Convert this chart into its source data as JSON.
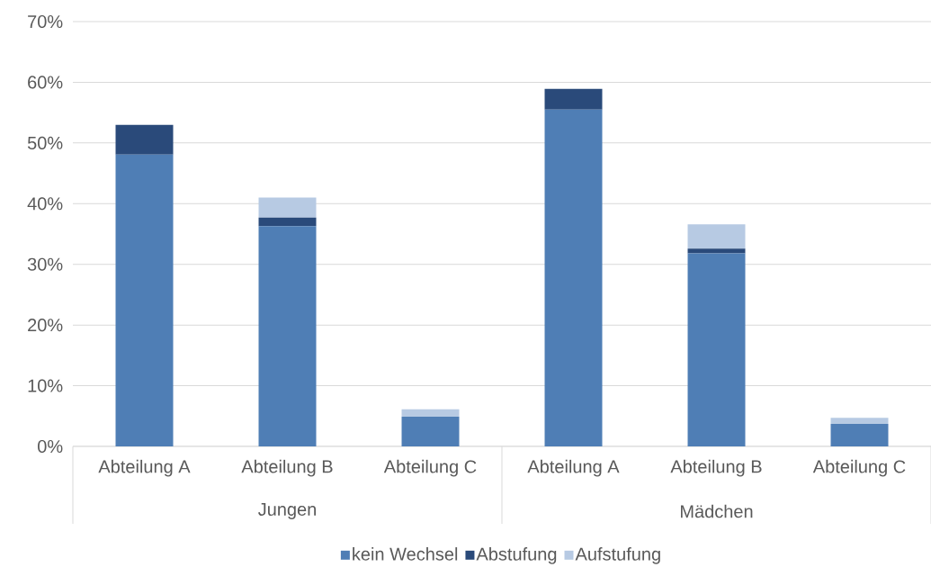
{
  "chart_data": {
    "type": "bar",
    "stacked": true,
    "categories": [
      "Abteilung A",
      "Abteilung B",
      "Abteilung C",
      "Abteilung A",
      "Abteilung B",
      "Abteilung C"
    ],
    "series": [
      {
        "name": "kein Wechsel",
        "color": "#4f7eb5",
        "values": [
          48.1,
          36.3,
          4.9,
          55.5,
          31.8,
          3.7
        ]
      },
      {
        "name": "Abstufung",
        "color": "#2a4a7a",
        "values": [
          4.9,
          1.4,
          0,
          3.4,
          0.8,
          0
        ]
      },
      {
        "name": "Aufstufung",
        "color": "#b7cae3",
        "values": [
          0,
          3.3,
          1.2,
          0,
          4.0,
          1.0
        ]
      }
    ],
    "ylim": [
      0,
      70
    ],
    "yticks": [
      {
        "value": 0,
        "label": "0%"
      },
      {
        "value": 10,
        "label": "10%"
      },
      {
        "value": 20,
        "label": "20%"
      },
      {
        "value": 30,
        "label": "30%"
      },
      {
        "value": 40,
        "label": "40%"
      },
      {
        "value": 50,
        "label": "50%"
      },
      {
        "value": 60,
        "label": "60%"
      },
      {
        "value": 70,
        "label": "70%"
      }
    ],
    "grid": "y",
    "legend": "bottom",
    "annotations": [
      "Jungen",
      "Mädchen"
    ]
  }
}
